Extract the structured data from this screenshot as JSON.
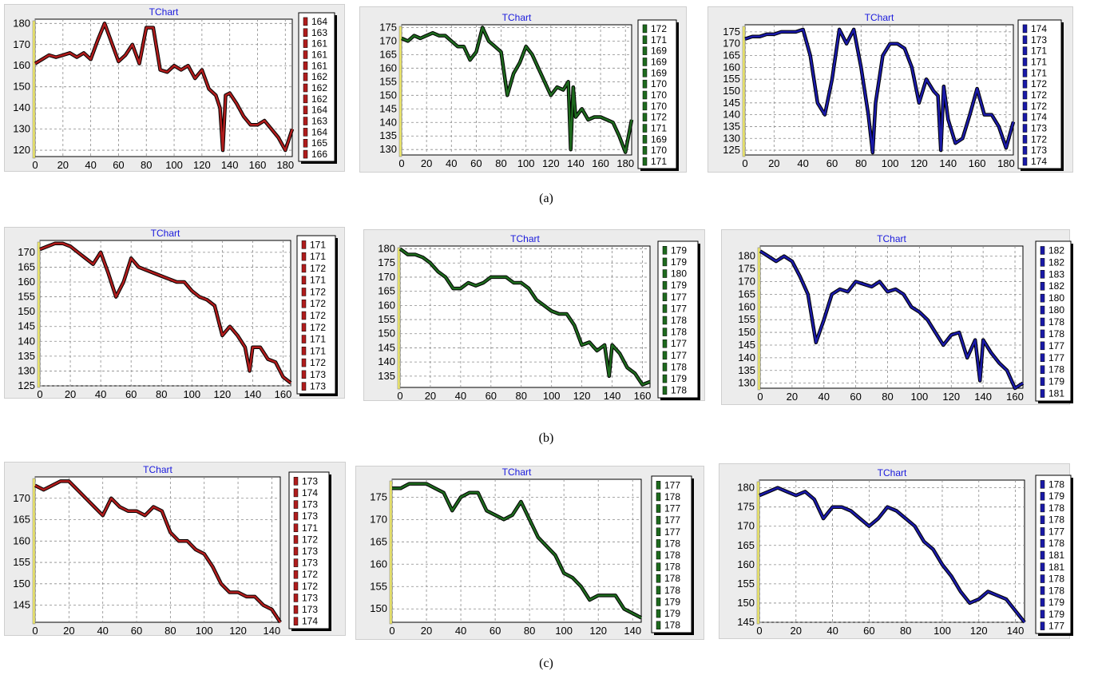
{
  "captions": [
    "(a)",
    "(b)",
    "(c)"
  ],
  "chart_data": [
    {
      "type": "line",
      "title": "TChart",
      "color": "#b01c1c",
      "xlim": [
        0,
        185
      ],
      "ylim": [
        117,
        182
      ],
      "xticks": [
        0,
        20,
        40,
        60,
        80,
        100,
        120,
        140,
        160,
        180
      ],
      "yticks": [
        120,
        130,
        140,
        150,
        160,
        170,
        180
      ],
      "x": [
        0,
        5,
        10,
        15,
        20,
        25,
        30,
        35,
        40,
        45,
        50,
        55,
        60,
        65,
        70,
        75,
        80,
        85,
        90,
        95,
        100,
        105,
        110,
        115,
        120,
        125,
        130,
        133,
        135,
        137,
        140,
        145,
        150,
        155,
        160,
        165,
        170,
        175,
        180,
        185
      ],
      "y": [
        161,
        163,
        165,
        164,
        165,
        166,
        164,
        166,
        163,
        172,
        180,
        171,
        162,
        165,
        170,
        161,
        178,
        178,
        158,
        157,
        160,
        158,
        160,
        154,
        158,
        149,
        146,
        140,
        120,
        146,
        147,
        142,
        136,
        132,
        132,
        134,
        130,
        126,
        120,
        130
      ],
      "legend": [
        "164",
        "163",
        "161",
        "161",
        "161",
        "162",
        "162",
        "162",
        "164",
        "163",
        "164",
        "165",
        "166"
      ]
    },
    {
      "type": "line",
      "title": "TChart",
      "color": "#1e6a1e",
      "xlim": [
        0,
        185
      ],
      "ylim": [
        128,
        176
      ],
      "xticks": [
        0,
        20,
        40,
        60,
        80,
        100,
        120,
        140,
        160,
        180
      ],
      "yticks": [
        130,
        135,
        140,
        145,
        150,
        155,
        160,
        165,
        170,
        175
      ],
      "x": [
        0,
        5,
        10,
        15,
        20,
        25,
        30,
        35,
        40,
        45,
        50,
        55,
        60,
        65,
        70,
        75,
        80,
        85,
        90,
        95,
        100,
        105,
        110,
        115,
        120,
        125,
        130,
        134,
        136,
        138,
        140,
        145,
        150,
        155,
        160,
        165,
        170,
        175,
        180,
        185
      ],
      "y": [
        171,
        170,
        172,
        171,
        172,
        173,
        172,
        172,
        170,
        168,
        168,
        163,
        166,
        175,
        170,
        168,
        166,
        150,
        158,
        162,
        168,
        165,
        160,
        155,
        150,
        153,
        152,
        155,
        130,
        153,
        142,
        145,
        141,
        142,
        142,
        141,
        140,
        135,
        129,
        141
      ],
      "legend": [
        "172",
        "171",
        "169",
        "169",
        "169",
        "170",
        "170",
        "170",
        "172",
        "171",
        "169",
        "170",
        "171"
      ]
    },
    {
      "type": "line",
      "title": "TChart",
      "color": "#1a1aa8",
      "xlim": [
        0,
        185
      ],
      "ylim": [
        123,
        178
      ],
      "xticks": [
        0,
        20,
        40,
        60,
        80,
        100,
        120,
        140,
        160,
        180
      ],
      "yticks": [
        125,
        130,
        135,
        140,
        145,
        150,
        155,
        160,
        165,
        170,
        175
      ],
      "x": [
        0,
        5,
        10,
        15,
        20,
        25,
        30,
        35,
        40,
        45,
        50,
        55,
        60,
        65,
        70,
        75,
        80,
        85,
        88,
        90,
        95,
        100,
        105,
        110,
        115,
        120,
        125,
        130,
        133,
        135,
        137,
        140,
        145,
        150,
        155,
        160,
        165,
        170,
        175,
        180,
        185
      ],
      "y": [
        172,
        173,
        173,
        174,
        174,
        175,
        175,
        175,
        176,
        165,
        145,
        140,
        155,
        176,
        170,
        176,
        160,
        140,
        124,
        145,
        165,
        170,
        170,
        168,
        160,
        145,
        155,
        150,
        148,
        125,
        152,
        138,
        128,
        130,
        140,
        151,
        140,
        140,
        135,
        126,
        137
      ],
      "legend": [
        "174",
        "173",
        "171",
        "171",
        "171",
        "172",
        "172",
        "172",
        "174",
        "173",
        "172",
        "173",
        "174"
      ]
    },
    {
      "type": "line",
      "title": "TChart",
      "color": "#b01c1c",
      "xlim": [
        0,
        165
      ],
      "ylim": [
        125,
        174
      ],
      "xticks": [
        0,
        20,
        40,
        60,
        80,
        100,
        120,
        140,
        160
      ],
      "yticks": [
        125,
        130,
        135,
        140,
        145,
        150,
        155,
        160,
        165,
        170
      ],
      "x": [
        0,
        5,
        10,
        15,
        20,
        25,
        30,
        35,
        40,
        45,
        50,
        55,
        60,
        65,
        70,
        75,
        80,
        85,
        90,
        95,
        100,
        105,
        110,
        115,
        120,
        125,
        130,
        135,
        138,
        140,
        145,
        150,
        155,
        160,
        165
      ],
      "y": [
        171,
        172,
        173,
        173,
        172,
        170,
        168,
        166,
        170,
        163,
        155,
        160,
        168,
        165,
        164,
        163,
        162,
        161,
        160,
        160,
        157,
        155,
        154,
        152,
        142,
        145,
        142,
        138,
        130,
        138,
        138,
        134,
        133,
        128,
        126
      ],
      "legend": [
        "171",
        "171",
        "172",
        "171",
        "172",
        "172",
        "172",
        "172",
        "171",
        "171",
        "172",
        "173",
        "173"
      ]
    },
    {
      "type": "line",
      "title": "TChart",
      "color": "#1e6a1e",
      "xlim": [
        0,
        165
      ],
      "ylim": [
        131,
        181
      ],
      "xticks": [
        0,
        20,
        40,
        60,
        80,
        100,
        120,
        140,
        160
      ],
      "yticks": [
        135,
        140,
        145,
        150,
        155,
        160,
        165,
        170,
        175,
        180
      ],
      "x": [
        0,
        5,
        10,
        15,
        20,
        25,
        30,
        35,
        40,
        45,
        50,
        55,
        60,
        65,
        70,
        75,
        80,
        85,
        90,
        95,
        100,
        105,
        110,
        115,
        120,
        125,
        130,
        135,
        138,
        140,
        145,
        150,
        155,
        160,
        165
      ],
      "y": [
        180,
        178,
        178,
        177,
        175,
        172,
        170,
        166,
        166,
        168,
        167,
        168,
        170,
        170,
        170,
        168,
        168,
        166,
        162,
        160,
        158,
        157,
        157,
        153,
        146,
        147,
        144,
        146,
        135,
        146,
        143,
        138,
        136,
        132,
        133
      ],
      "legend": [
        "179",
        "179",
        "180",
        "179",
        "177",
        "177",
        "178",
        "178",
        "177",
        "177",
        "178",
        "179",
        "178"
      ]
    },
    {
      "type": "line",
      "title": "TChart",
      "color": "#1a1aa8",
      "xlim": [
        0,
        165
      ],
      "ylim": [
        128,
        184
      ],
      "xticks": [
        0,
        20,
        40,
        60,
        80,
        100,
        120,
        140,
        160
      ],
      "yticks": [
        130,
        135,
        140,
        145,
        150,
        155,
        160,
        165,
        170,
        175,
        180
      ],
      "x": [
        0,
        5,
        10,
        15,
        20,
        25,
        30,
        35,
        40,
        45,
        50,
        55,
        60,
        65,
        70,
        75,
        80,
        85,
        90,
        95,
        100,
        105,
        110,
        115,
        120,
        125,
        130,
        135,
        138,
        140,
        145,
        150,
        155,
        160,
        165
      ],
      "y": [
        182,
        180,
        178,
        180,
        178,
        172,
        165,
        146,
        155,
        165,
        167,
        166,
        170,
        169,
        168,
        170,
        166,
        167,
        165,
        160,
        158,
        155,
        150,
        145,
        149,
        150,
        140,
        147,
        131,
        147,
        142,
        138,
        135,
        128,
        130
      ],
      "legend": [
        "182",
        "182",
        "183",
        "182",
        "180",
        "180",
        "178",
        "178",
        "177",
        "177",
        "178",
        "179",
        "181"
      ]
    },
    {
      "type": "line",
      "title": "TChart",
      "color": "#b01c1c",
      "xlim": [
        0,
        145
      ],
      "ylim": [
        141,
        175
      ],
      "xticks": [
        0,
        20,
        40,
        60,
        80,
        100,
        120,
        140
      ],
      "yticks": [
        145,
        150,
        155,
        160,
        165,
        170
      ],
      "x": [
        0,
        5,
        10,
        15,
        20,
        25,
        30,
        35,
        40,
        45,
        50,
        55,
        60,
        65,
        70,
        75,
        80,
        85,
        90,
        95,
        100,
        105,
        110,
        115,
        120,
        125,
        130,
        135,
        140,
        145
      ],
      "y": [
        173,
        172,
        173,
        174,
        174,
        172,
        170,
        168,
        166,
        170,
        168,
        167,
        167,
        166,
        168,
        167,
        162,
        160,
        160,
        158,
        157,
        154,
        150,
        148,
        148,
        147,
        147,
        145,
        144,
        141
      ],
      "legend": [
        "173",
        "174",
        "173",
        "173",
        "171",
        "172",
        "173",
        "173",
        "172",
        "172",
        "173",
        "173",
        "174"
      ]
    },
    {
      "type": "line",
      "title": "TChart",
      "color": "#1e6a1e",
      "xlim": [
        0,
        145
      ],
      "ylim": [
        147,
        179
      ],
      "xticks": [
        0,
        20,
        40,
        60,
        80,
        100,
        120,
        140
      ],
      "yticks": [
        150,
        155,
        160,
        165,
        170,
        175
      ],
      "x": [
        0,
        5,
        10,
        15,
        20,
        25,
        30,
        35,
        40,
        45,
        50,
        55,
        60,
        65,
        70,
        75,
        80,
        85,
        90,
        95,
        100,
        105,
        110,
        115,
        120,
        125,
        130,
        135,
        140,
        145
      ],
      "y": [
        177,
        177,
        178,
        178,
        178,
        177,
        176,
        172,
        175,
        176,
        176,
        172,
        171,
        170,
        171,
        174,
        170,
        166,
        164,
        162,
        158,
        157,
        155,
        152,
        153,
        153,
        153,
        150,
        149,
        148
      ],
      "legend": [
        "177",
        "178",
        "177",
        "177",
        "177",
        "178",
        "178",
        "178",
        "178",
        "178",
        "179",
        "179",
        "178"
      ]
    },
    {
      "type": "line",
      "title": "TChart",
      "color": "#1a1aa8",
      "xlim": [
        0,
        145
      ],
      "ylim": [
        145,
        182
      ],
      "xticks": [
        0,
        20,
        40,
        60,
        80,
        100,
        120,
        140
      ],
      "yticks": [
        145,
        150,
        155,
        160,
        165,
        170,
        175,
        180
      ],
      "x": [
        0,
        5,
        10,
        15,
        20,
        25,
        30,
        35,
        40,
        45,
        50,
        55,
        60,
        65,
        70,
        75,
        80,
        85,
        90,
        95,
        100,
        105,
        110,
        115,
        120,
        125,
        130,
        135,
        140,
        145
      ],
      "y": [
        178,
        179,
        180,
        179,
        178,
        179,
        177,
        172,
        175,
        175,
        174,
        172,
        170,
        172,
        175,
        174,
        172,
        170,
        166,
        164,
        160,
        157,
        153,
        150,
        151,
        153,
        152,
        151,
        148,
        145
      ],
      "legend": [
        "178",
        "179",
        "178",
        "178",
        "177",
        "178",
        "181",
        "181",
        "178",
        "178",
        "179",
        "179",
        "177"
      ]
    }
  ]
}
